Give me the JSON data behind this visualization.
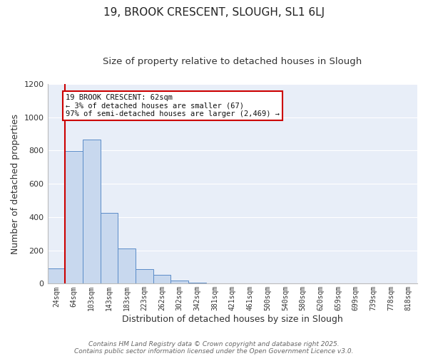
{
  "title1": "19, BROOK CRESCENT, SLOUGH, SL1 6LJ",
  "title2": "Size of property relative to detached houses in Slough",
  "xlabel": "Distribution of detached houses by size in Slough",
  "ylabel": "Number of detached properties",
  "bar_color": "#c8d8ee",
  "bar_edge_color": "#5b8cc8",
  "background_color": "#e8eef8",
  "plot_bg_color": "#e8eef8",
  "grid_color": "#ffffff",
  "categories": [
    "24sqm",
    "64sqm",
    "103sqm",
    "143sqm",
    "183sqm",
    "223sqm",
    "262sqm",
    "302sqm",
    "342sqm",
    "381sqm",
    "421sqm",
    "461sqm",
    "500sqm",
    "540sqm",
    "580sqm",
    "620sqm",
    "659sqm",
    "699sqm",
    "739sqm",
    "778sqm",
    "818sqm"
  ],
  "values": [
    90,
    795,
    865,
    425,
    210,
    88,
    52,
    20,
    5,
    0,
    0,
    0,
    0,
    0,
    0,
    0,
    0,
    0,
    0,
    0,
    2
  ],
  "annotation_title": "19 BROOK CRESCENT: 62sqm",
  "annotation_line1": "← 3% of detached houses are smaller (67)",
  "annotation_line2": "97% of semi-detached houses are larger (2,469) →",
  "annotation_box_color": "#ffffff",
  "annotation_border_color": "#cc0000",
  "red_line_color": "#cc0000",
  "ylim": [
    0,
    1200
  ],
  "yticks": [
    0,
    200,
    400,
    600,
    800,
    1000,
    1200
  ],
  "footer1": "Contains HM Land Registry data © Crown copyright and database right 2025.",
  "footer2": "Contains public sector information licensed under the Open Government Licence v3.0."
}
